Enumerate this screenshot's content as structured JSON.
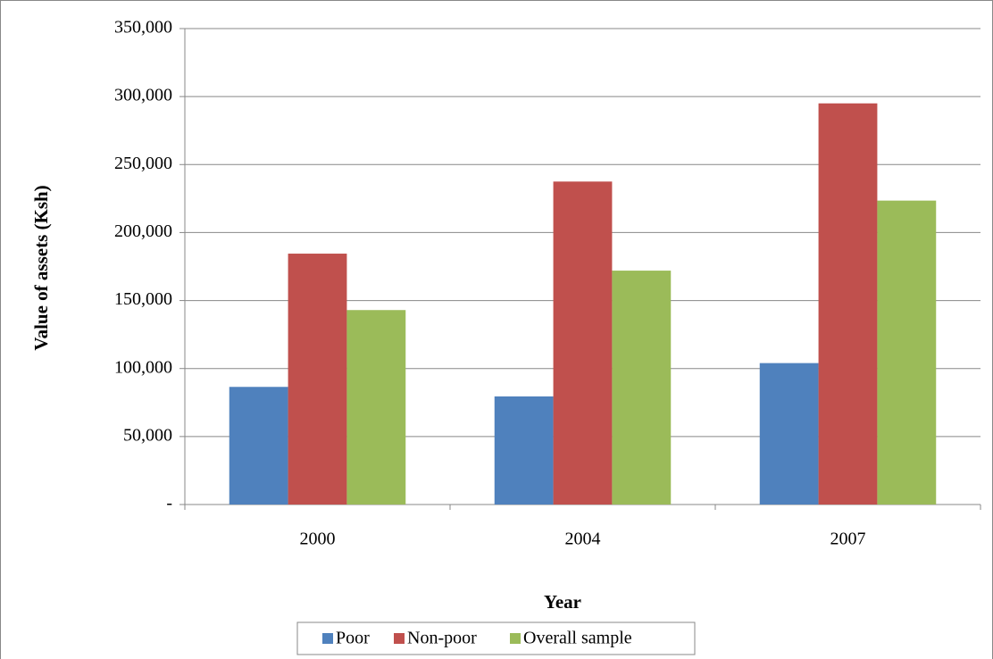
{
  "chart_data": {
    "type": "bar",
    "x_label": "Year",
    "y_label": "Value of assets (Ksh)",
    "categories": [
      "2000",
      "2004",
      "2007"
    ],
    "series": [
      {
        "name": "Poor",
        "color": "#4f81bd",
        "values": [
          86500,
          79500,
          104000
        ]
      },
      {
        "name": "Non-poor",
        "color": "#c0504d",
        "values": [
          184500,
          237500,
          295000
        ]
      },
      {
        "name": "Overall sample",
        "color": "#9bbb59",
        "values": [
          143000,
          172000,
          223500
        ]
      }
    ],
    "ylim": [
      0,
      350000
    ],
    "yticks": [
      {
        "value": 0,
        "label": "-"
      },
      {
        "value": 50000,
        "label": "50,000"
      },
      {
        "value": 100000,
        "label": "100,000"
      },
      {
        "value": 150000,
        "label": "150,000"
      },
      {
        "value": 200000,
        "label": "200,000"
      },
      {
        "value": 250000,
        "label": "250,000"
      },
      {
        "value": 300000,
        "label": "300,000"
      },
      {
        "value": 350000,
        "label": "350,000"
      }
    ],
    "grid": true,
    "legend": "bottom"
  }
}
